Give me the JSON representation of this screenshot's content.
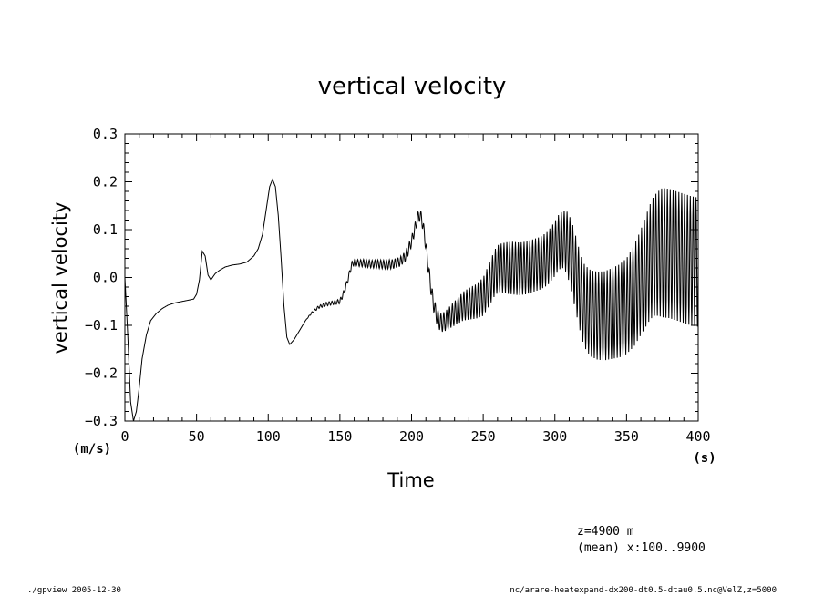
{
  "chart_data": {
    "type": "line",
    "title": "vertical velocity",
    "xlabel": "Time",
    "ylabel": "vertical velocity",
    "x_unit": "(s)",
    "y_unit": "(m/s)",
    "xlim": [
      0,
      400
    ],
    "ylim": [
      -0.3,
      0.3
    ],
    "x_ticks": [
      "0",
      "50",
      "100",
      "150",
      "200",
      "250",
      "300",
      "350",
      "400"
    ],
    "x_tick_values": [
      0,
      50,
      100,
      150,
      200,
      250,
      300,
      350,
      400
    ],
    "y_ticks": [
      "−0.3",
      "−0.2",
      "−0.1",
      "0.0",
      "0.1",
      "0.2",
      "0.3"
    ],
    "y_tick_values": [
      -0.3,
      -0.2,
      -0.1,
      0.0,
      0.1,
      0.2,
      0.3
    ],
    "grid": false,
    "oscillation_period": 2,
    "series": [
      {
        "x": [
          0,
          2,
          4,
          6,
          8,
          10,
          12,
          15,
          18,
          22,
          26,
          30,
          35,
          40,
          45,
          48,
          50,
          52,
          54,
          56,
          58,
          60,
          63,
          66,
          70,
          75,
          80,
          85,
          90,
          93,
          96,
          99,
          101,
          103,
          105,
          107,
          109,
          111,
          113,
          115,
          118,
          122,
          126,
          130,
          135,
          140,
          145,
          150,
          153,
          156,
          158,
          160,
          163,
          167,
          172,
          177,
          182,
          187,
          192,
          196,
          200,
          203,
          205,
          207,
          209,
          211,
          213,
          215,
          217,
          219,
          221,
          224,
          228,
          232,
          236,
          240,
          245,
          250,
          255,
          258,
          261,
          264,
          267,
          270,
          275,
          280,
          285,
          290,
          295,
          300,
          303,
          306,
          308,
          310,
          312,
          314,
          316,
          318,
          320,
          322,
          325,
          330,
          335,
          340,
          345,
          350,
          355,
          360,
          363,
          366,
          369,
          372,
          375,
          380,
          385,
          390,
          395,
          400
        ],
        "mean": [
          0.0,
          -0.12,
          -0.26,
          -0.3,
          -0.28,
          -0.23,
          -0.17,
          -0.12,
          -0.09,
          -0.075,
          -0.065,
          -0.058,
          -0.053,
          -0.05,
          -0.047,
          -0.045,
          -0.035,
          -0.005,
          0.055,
          0.045,
          0.005,
          -0.005,
          0.008,
          0.015,
          0.022,
          0.026,
          0.028,
          0.032,
          0.045,
          0.06,
          0.09,
          0.15,
          0.19,
          0.205,
          0.19,
          0.13,
          0.04,
          -0.06,
          -0.125,
          -0.14,
          -0.13,
          -0.11,
          -0.09,
          -0.075,
          -0.062,
          -0.056,
          -0.053,
          -0.05,
          -0.03,
          0.0,
          0.025,
          0.033,
          0.03,
          0.03,
          0.028,
          0.028,
          0.027,
          0.028,
          0.033,
          0.045,
          0.075,
          0.11,
          0.13,
          0.125,
          0.09,
          0.04,
          -0.01,
          -0.05,
          -0.075,
          -0.09,
          -0.095,
          -0.09,
          -0.08,
          -0.07,
          -0.06,
          -0.055,
          -0.05,
          -0.04,
          -0.01,
          0.01,
          0.02,
          0.02,
          0.02,
          0.02,
          0.018,
          0.02,
          0.025,
          0.03,
          0.04,
          0.06,
          0.075,
          0.08,
          0.075,
          0.06,
          0.04,
          0.015,
          -0.01,
          -0.035,
          -0.055,
          -0.065,
          -0.075,
          -0.08,
          -0.08,
          -0.075,
          -0.07,
          -0.06,
          -0.04,
          -0.01,
          0.01,
          0.03,
          0.045,
          0.05,
          0.052,
          0.05,
          0.045,
          0.04,
          0.035,
          0.032
        ],
        "amp": [
          0.0,
          0.0,
          0.0,
          0.0,
          0.0,
          0.0,
          0.0,
          0.0,
          0.0,
          0.0,
          0.0,
          0.0,
          0.0,
          0.0,
          0.0,
          0.0,
          0.0,
          0.0,
          0.0,
          0.0,
          0.0,
          0.0,
          0.0,
          0.0,
          0.0,
          0.0,
          0.0,
          0.0,
          0.0,
          0.0,
          0.0,
          0.0,
          0.0,
          0.0,
          0.0,
          0.0,
          0.0,
          0.0,
          0.0,
          0.0,
          0.0,
          0.0,
          0.0,
          0.002,
          0.003,
          0.004,
          0.004,
          0.005,
          0.006,
          0.006,
          0.007,
          0.007,
          0.007,
          0.008,
          0.008,
          0.009,
          0.009,
          0.01,
          0.01,
          0.011,
          0.011,
          0.012,
          0.012,
          0.013,
          0.013,
          0.014,
          0.015,
          0.016,
          0.017,
          0.018,
          0.019,
          0.021,
          0.024,
          0.027,
          0.03,
          0.033,
          0.036,
          0.04,
          0.045,
          0.048,
          0.05,
          0.052,
          0.054,
          0.055,
          0.055,
          0.055,
          0.055,
          0.055,
          0.056,
          0.057,
          0.058,
          0.06,
          0.065,
          0.07,
          0.075,
          0.078,
          0.08,
          0.082,
          0.085,
          0.088,
          0.09,
          0.092,
          0.093,
          0.095,
          0.097,
          0.1,
          0.105,
          0.11,
          0.115,
          0.12,
          0.125,
          0.13,
          0.135,
          0.135,
          0.135,
          0.135,
          0.135,
          0.135
        ]
      }
    ]
  },
  "annotations": {
    "line1": "z=4900  m",
    "line2": "(mean) x:100..9900"
  },
  "footer": {
    "left": "./gpview  2005-12-30",
    "right": "nc/arare-heatexpand-dx200-dt0.5-dtau0.5.nc@VelZ,z=5000"
  }
}
